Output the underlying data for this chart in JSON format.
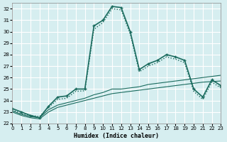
{
  "xlabel": "Humidex (Indice chaleur)",
  "ylabel": "",
  "bg_color": "#d6eef0",
  "grid_color": "#ffffff",
  "line_color": "#1a6b5e",
  "xlim": [
    0,
    23
  ],
  "ylim": [
    22,
    32.5
  ],
  "yticks": [
    22,
    23,
    24,
    25,
    26,
    27,
    28,
    29,
    30,
    31,
    32
  ],
  "xticks": [
    0,
    1,
    2,
    3,
    4,
    5,
    6,
    7,
    8,
    9,
    10,
    11,
    12,
    13,
    14,
    15,
    16,
    17,
    18,
    19,
    20,
    21,
    22,
    23
  ],
  "series": [
    {
      "x": [
        0,
        1,
        2,
        3,
        4,
        5,
        6,
        7,
        8,
        9,
        10,
        11,
        12,
        13,
        14,
        15,
        16,
        17,
        18,
        19,
        20,
        21,
        22,
        23
      ],
      "y": [
        23.3,
        23.0,
        22.7,
        22.5,
        23.5,
        24.3,
        24.4,
        25.0,
        25.0,
        30.5,
        31.0,
        32.2,
        32.1,
        30.0,
        26.7,
        27.2,
        27.5,
        28.0,
        27.8,
        27.5,
        25.0,
        24.3,
        25.8,
        25.3
      ],
      "style": "-",
      "marker": "+",
      "lw": 1.2
    },
    {
      "x": [
        0,
        1,
        2,
        3,
        4,
        5,
        6,
        7,
        8,
        9,
        10,
        11,
        12,
        13,
        14,
        15,
        16,
        17,
        18,
        19,
        20,
        21,
        22,
        23
      ],
      "y": [
        23.2,
        22.85,
        22.7,
        22.6,
        23.4,
        24.1,
        24.2,
        24.8,
        24.85,
        30.2,
        30.8,
        32.0,
        31.9,
        29.8,
        26.5,
        27.0,
        27.3,
        27.8,
        27.6,
        27.3,
        24.8,
        24.1,
        25.6,
        25.1
      ],
      "style": ":",
      "marker": null,
      "lw": 1.0
    },
    {
      "x": [
        0,
        1,
        2,
        3,
        4,
        5,
        6,
        7,
        8,
        9,
        10,
        11,
        12,
        13,
        14,
        15,
        16,
        17,
        18,
        19,
        20,
        21,
        22,
        23
      ],
      "y": [
        23.1,
        22.8,
        22.6,
        22.5,
        23.2,
        23.6,
        23.8,
        24.0,
        24.2,
        24.5,
        24.7,
        25.0,
        25.0,
        25.1,
        25.2,
        25.4,
        25.5,
        25.6,
        25.7,
        25.8,
        25.9,
        26.0,
        26.1,
        26.2
      ],
      "style": "-",
      "marker": null,
      "lw": 0.8
    },
    {
      "x": [
        0,
        1,
        2,
        3,
        4,
        5,
        6,
        7,
        8,
        9,
        10,
        11,
        12,
        13,
        14,
        15,
        16,
        17,
        18,
        19,
        20,
        21,
        22,
        23
      ],
      "y": [
        23.0,
        22.7,
        22.5,
        22.4,
        23.0,
        23.4,
        23.6,
        23.8,
        24.0,
        24.2,
        24.4,
        24.6,
        24.7,
        24.8,
        24.9,
        25.0,
        25.1,
        25.2,
        25.3,
        25.4,
        25.5,
        25.6,
        25.65,
        25.7
      ],
      "style": "-",
      "marker": null,
      "lw": 0.8
    }
  ]
}
